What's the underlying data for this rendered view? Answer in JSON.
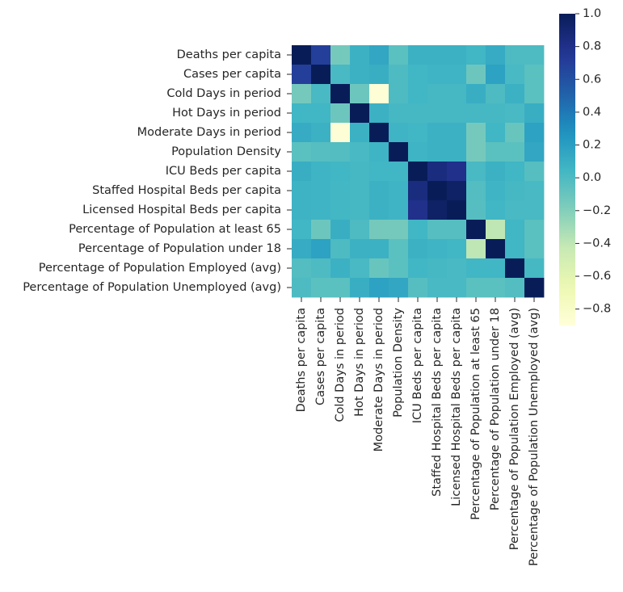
{
  "chart_data": {
    "type": "heatmap",
    "title": "",
    "xlabel": "",
    "ylabel": "",
    "labels": [
      "Deaths per capita",
      "Cases per capita",
      "Cold Days in period",
      "Hot Days in period",
      "Moderate Days in period",
      "Population Density",
      "ICU Beds per capita",
      "Staffed Hospital Beds per capita",
      "Licensed Hospital Beds per capita",
      "Percentage of Population at least 65",
      "Percentage of Population under 18",
      "Percentage of Population Employed (avg)",
      "Percentage of Population Unemployed (avg)"
    ],
    "matrix": [
      [
        1.0,
        0.7,
        -0.15,
        0.08,
        0.15,
        -0.05,
        0.08,
        0.08,
        0.08,
        0.05,
        0.12,
        0.0,
        0.0
      ],
      [
        0.7,
        1.0,
        0.02,
        0.08,
        0.1,
        0.0,
        0.05,
        0.06,
        0.06,
        -0.12,
        0.18,
        0.02,
        -0.05
      ],
      [
        -0.15,
        0.02,
        1.0,
        -0.12,
        -0.88,
        0.0,
        0.05,
        0.03,
        0.03,
        0.1,
        0.0,
        0.08,
        -0.05
      ],
      [
        0.05,
        0.05,
        -0.12,
        1.0,
        0.08,
        0.03,
        0.03,
        0.03,
        0.03,
        0.03,
        0.03,
        0.02,
        0.1
      ],
      [
        0.12,
        0.08,
        -0.88,
        0.08,
        1.0,
        0.06,
        0.05,
        0.08,
        0.08,
        -0.15,
        0.05,
        -0.1,
        0.18
      ],
      [
        -0.05,
        -0.03,
        -0.02,
        0.02,
        0.06,
        1.0,
        0.06,
        0.08,
        0.08,
        -0.15,
        -0.05,
        -0.05,
        0.15
      ],
      [
        0.1,
        0.06,
        0.05,
        0.03,
        0.05,
        0.05,
        1.0,
        0.85,
        0.8,
        0.02,
        0.08,
        0.05,
        -0.03
      ],
      [
        0.07,
        0.06,
        0.04,
        0.03,
        0.08,
        0.06,
        0.85,
        1.0,
        0.95,
        -0.02,
        0.06,
        0.03,
        0.02
      ],
      [
        0.07,
        0.06,
        0.04,
        0.03,
        0.08,
        0.06,
        0.8,
        0.95,
        1.0,
        -0.03,
        0.05,
        0.02,
        0.02
      ],
      [
        0.05,
        -0.12,
        0.1,
        0.0,
        -0.15,
        -0.15,
        0.05,
        -0.03,
        -0.03,
        1.0,
        -0.4,
        0.05,
        -0.05
      ],
      [
        0.12,
        0.18,
        0.0,
        0.08,
        0.08,
        -0.05,
        0.08,
        0.06,
        0.05,
        -0.4,
        1.0,
        0.05,
        -0.05
      ],
      [
        -0.02,
        0.0,
        0.08,
        0.02,
        -0.1,
        -0.05,
        0.05,
        0.03,
        0.02,
        0.05,
        0.05,
        1.0,
        0.03
      ],
      [
        0.0,
        -0.05,
        -0.05,
        0.1,
        0.18,
        0.15,
        -0.03,
        0.02,
        0.02,
        -0.05,
        -0.05,
        -0.02,
        1.0
      ]
    ],
    "vmin": -0.9,
    "vmax": 1.0,
    "colormap": "YlGnBu",
    "colorbar_ticks": [
      1.0,
      0.8,
      0.6,
      0.4,
      0.2,
      0.0,
      -0.2,
      -0.4,
      -0.6,
      -0.8
    ],
    "colorbar_tick_labels": [
      "1.0",
      "0.8",
      "0.6",
      "0.4",
      "0.2",
      "0.0",
      "−0.2",
      "−0.4",
      "−0.6",
      "−0.8"
    ],
    "grid": false,
    "legend": "colorbar-right"
  }
}
